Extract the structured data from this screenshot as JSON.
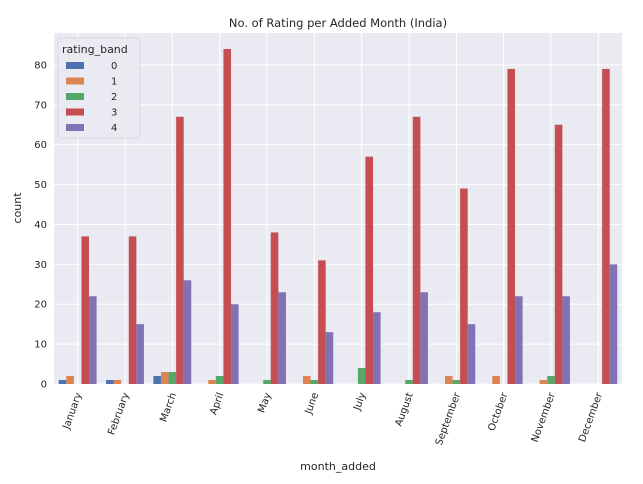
{
  "chart_data": {
    "type": "bar",
    "title": "No. of Rating per Added Month (India)",
    "xlabel": "month_added",
    "ylabel": "count",
    "ylim": [
      0,
      88
    ],
    "yticks": [
      0,
      10,
      20,
      30,
      40,
      50,
      60,
      70,
      80
    ],
    "grid": true,
    "legend_title": "rating_band",
    "legend_position": "top-left",
    "categories": [
      "January",
      "February",
      "March",
      "April",
      "May",
      "June",
      "July",
      "August",
      "September",
      "October",
      "November",
      "December"
    ],
    "series": [
      {
        "name": "0",
        "color": "#4c72b0",
        "values": [
          1,
          1,
          2,
          0,
          0,
          0,
          0,
          0,
          0,
          0,
          0,
          0
        ]
      },
      {
        "name": "1",
        "color": "#dd8452",
        "values": [
          2,
          1,
          3,
          1,
          0,
          2,
          0,
          0,
          2,
          2,
          1,
          0
        ]
      },
      {
        "name": "2",
        "color": "#55a868",
        "values": [
          0,
          0,
          3,
          2,
          1,
          1,
          4,
          1,
          1,
          0,
          2,
          0
        ]
      },
      {
        "name": "3",
        "color": "#c44e52",
        "values": [
          37,
          37,
          67,
          84,
          38,
          31,
          57,
          67,
          49,
          79,
          65,
          79
        ]
      },
      {
        "name": "4",
        "color": "#8172b3",
        "values": [
          22,
          15,
          26,
          20,
          23,
          13,
          18,
          23,
          15,
          22,
          22,
          30
        ]
      }
    ]
  }
}
